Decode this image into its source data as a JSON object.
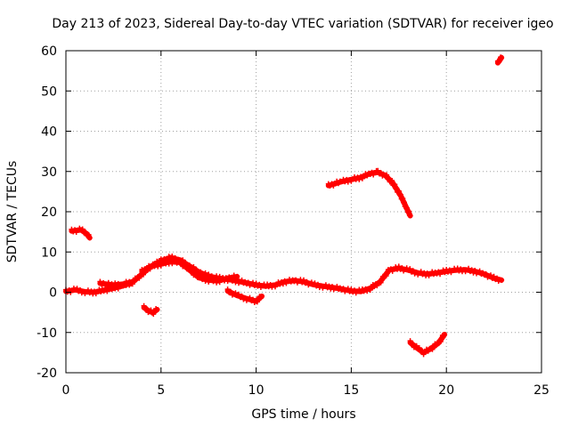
{
  "chart_data": {
    "type": "scatter",
    "title": "Day 213 of 2023, Sidereal Day-to-day VTEC variation (SDTVAR) for receiver igeo",
    "xlabel": "GPS time / hours",
    "ylabel": "SDTVAR / TECUs",
    "xlim": [
      0,
      25
    ],
    "ylim": [
      -20,
      60
    ],
    "xticks": [
      "0",
      "5",
      "10",
      "15",
      "20",
      "25"
    ],
    "yticks": [
      "-20",
      "-10",
      "0",
      "10",
      "20",
      "30",
      "40",
      "50",
      "60"
    ],
    "grid": true,
    "color": "#ff0000",
    "series": [
      {
        "name": "main",
        "points": [
          [
            0.0,
            0.2
          ],
          [
            0.5,
            0.6
          ],
          [
            1.0,
            0.1
          ],
          [
            1.5,
            0.0
          ],
          [
            2.0,
            0.5
          ],
          [
            2.5,
            1.0
          ],
          [
            3.0,
            1.6
          ],
          [
            3.5,
            2.5
          ],
          [
            4.0,
            4.5
          ],
          [
            4.5,
            6.5
          ],
          [
            5.0,
            7.8
          ],
          [
            5.5,
            8.6
          ],
          [
            6.0,
            8.0
          ],
          [
            6.5,
            6.5
          ],
          [
            7.0,
            5.0
          ],
          [
            7.5,
            4.0
          ],
          [
            8.0,
            3.5
          ],
          [
            8.5,
            3.2
          ],
          [
            9.0,
            2.8
          ],
          [
            9.5,
            2.3
          ],
          [
            10.0,
            1.8
          ],
          [
            10.5,
            1.5
          ],
          [
            11.0,
            1.8
          ],
          [
            11.5,
            2.6
          ],
          [
            12.0,
            2.9
          ],
          [
            12.5,
            2.6
          ],
          [
            13.0,
            1.9
          ],
          [
            13.5,
            1.5
          ],
          [
            14.0,
            1.2
          ],
          [
            14.5,
            0.8
          ],
          [
            15.0,
            0.3
          ],
          [
            15.5,
            0.2
          ],
          [
            16.0,
            1.0
          ],
          [
            16.5,
            2.5
          ],
          [
            17.0,
            5.5
          ],
          [
            17.5,
            6.0
          ],
          [
            18.0,
            5.5
          ],
          [
            18.5,
            4.8
          ],
          [
            19.0,
            4.5
          ],
          [
            19.5,
            4.8
          ],
          [
            20.0,
            5.2
          ],
          [
            20.5,
            5.5
          ],
          [
            21.0,
            5.6
          ],
          [
            21.5,
            5.2
          ],
          [
            22.0,
            4.5
          ],
          [
            22.5,
            3.5
          ],
          [
            22.9,
            3.0
          ]
        ]
      },
      {
        "name": "low-dip-a",
        "points": [
          [
            8.5,
            0.3
          ],
          [
            9.0,
            -0.8
          ],
          [
            9.5,
            -1.6
          ],
          [
            10.0,
            -2.2
          ],
          [
            10.3,
            -1.0
          ]
        ]
      },
      {
        "name": "low-dip-b",
        "points": [
          [
            1.8,
            2.2
          ],
          [
            2.5,
            1.8
          ],
          [
            3.0,
            2.0
          ],
          [
            3.5,
            2.6
          ]
        ]
      },
      {
        "name": "lower-band",
        "points": [
          [
            4.0,
            5.2
          ],
          [
            4.5,
            6.5
          ],
          [
            5.0,
            7.0
          ],
          [
            5.5,
            7.6
          ],
          [
            6.0,
            7.4
          ],
          [
            6.5,
            5.5
          ],
          [
            7.0,
            3.6
          ],
          [
            7.5,
            3.0
          ],
          [
            8.0,
            2.8
          ],
          [
            8.5,
            3.5
          ],
          [
            9.0,
            3.9
          ]
        ]
      },
      {
        "name": "early-high",
        "points": [
          [
            0.3,
            15.2
          ],
          [
            0.8,
            15.5
          ],
          [
            1.1,
            14.5
          ],
          [
            1.25,
            13.5
          ]
        ]
      },
      {
        "name": "early-low",
        "points": [
          [
            4.1,
            -3.8
          ],
          [
            4.4,
            -4.8
          ],
          [
            4.6,
            -5.0
          ],
          [
            4.8,
            -4.3
          ]
        ]
      },
      {
        "name": "evening-arc",
        "points": [
          [
            13.8,
            26.5
          ],
          [
            14.5,
            27.5
          ],
          [
            15.0,
            28.0
          ],
          [
            15.5,
            28.5
          ],
          [
            16.0,
            29.5
          ],
          [
            16.4,
            29.8
          ],
          [
            16.8,
            29.0
          ],
          [
            17.2,
            27.0
          ],
          [
            17.6,
            24.0
          ],
          [
            17.9,
            21.0
          ],
          [
            18.1,
            19.0
          ]
        ]
      },
      {
        "name": "night-dip",
        "points": [
          [
            18.1,
            -12.5
          ],
          [
            18.5,
            -14.0
          ],
          [
            18.8,
            -15.0
          ],
          [
            19.2,
            -14.0
          ],
          [
            19.6,
            -12.5
          ],
          [
            19.9,
            -10.5
          ]
        ]
      },
      {
        "name": "late-spike",
        "points": [
          [
            22.7,
            57.0
          ],
          [
            22.8,
            57.6
          ],
          [
            22.9,
            58.3
          ]
        ]
      }
    ]
  }
}
